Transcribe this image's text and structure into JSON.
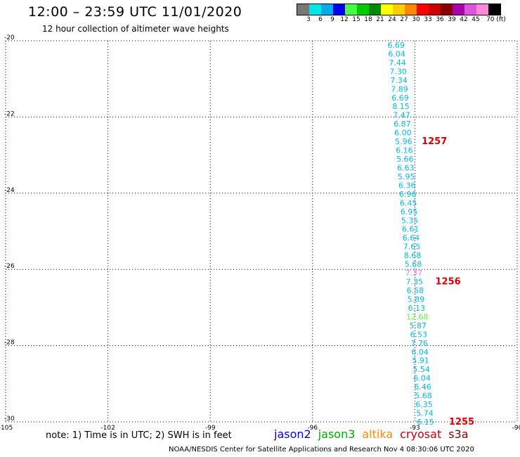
{
  "title": "12:00 – 23:59 UTC 11/01/2020",
  "subtitle": "12 hour collection of altimeter wave heights",
  "colorbar": {
    "colors": [
      "#777777",
      "#00e5e5",
      "#00aaee",
      "#0000ee",
      "#44ff44",
      "#00cc00",
      "#008800",
      "#ffff00",
      "#ffcc00",
      "#ff8800",
      "#ff0000",
      "#cc0000",
      "#880000",
      "#aa00aa",
      "#dd55dd",
      "#ff88dd",
      "#000000"
    ],
    "labels": [
      "3",
      "6",
      "9",
      "12",
      "15",
      "18",
      "21",
      "24",
      "27",
      "30",
      "33",
      "36",
      "39",
      "42",
      "45",
      "70 (ft)"
    ]
  },
  "note": "note:  1) Time is in UTC;  2) SWH is in feet",
  "legend": [
    {
      "name": "jason2",
      "color": "#0000dd"
    },
    {
      "name": "jason3",
      "color": "#00aa00"
    },
    {
      "name": "altika",
      "color": "#ff8800"
    },
    {
      "name": "cryosat",
      "color": "#cc0000"
    },
    {
      "name": "s3a",
      "color": "#880000"
    }
  ],
  "credit": "NOAA/NESDIS Center for Satellite Applications and Research    Nov  4 08:30:06 UTC 2020",
  "chart_data": {
    "type": "scatter",
    "title": "12:00 – 23:59 UTC 11/01/2020",
    "subtitle": "12 hour collection of altimeter wave heights",
    "xlim": [
      -105,
      -90
    ],
    "ylim": [
      -30,
      -20
    ],
    "x_ticks": [
      "-105",
      "-102",
      "-99",
      "-96",
      "-93",
      "-90"
    ],
    "y_ticks": [
      "-20",
      "-22",
      "-24",
      "-26",
      "-28",
      "-30"
    ],
    "grid": true,
    "series": [
      {
        "name": "",
        "color": "#00bbee",
        "points": [
          {
            "x": -93.55,
            "y": -20.11,
            "v": "6.69"
          },
          {
            "x": -93.53,
            "y": -20.34,
            "v": "6.04"
          },
          {
            "x": -93.51,
            "y": -20.57,
            "v": "7.44"
          },
          {
            "x": -93.49,
            "y": -20.8,
            "v": "7.30"
          },
          {
            "x": -93.47,
            "y": -21.03,
            "v": "7.34"
          },
          {
            "x": -93.45,
            "y": -21.26,
            "v": "7.89"
          },
          {
            "x": -93.43,
            "y": -21.49,
            "v": "6.69"
          },
          {
            "x": -93.41,
            "y": -21.72,
            "v": "8.15"
          },
          {
            "x": -93.39,
            "y": -21.95,
            "v": "7.47"
          },
          {
            "x": -93.37,
            "y": -22.18,
            "v": "6.87"
          },
          {
            "x": -93.35,
            "y": -22.41,
            "v": "6.00"
          },
          {
            "x": -93.33,
            "y": -22.64,
            "v": "5.96"
          },
          {
            "x": -93.31,
            "y": -22.87,
            "v": "6.16"
          },
          {
            "x": -93.29,
            "y": -23.1,
            "v": "5.66"
          },
          {
            "x": -93.27,
            "y": -23.33,
            "v": "6.63"
          },
          {
            "x": -93.25,
            "y": -23.56,
            "v": "5.95"
          },
          {
            "x": -93.23,
            "y": -23.79,
            "v": "6.36"
          },
          {
            "x": -93.21,
            "y": -24.02,
            "v": "6.96"
          },
          {
            "x": -93.19,
            "y": -24.25,
            "v": "6.45"
          },
          {
            "x": -93.17,
            "y": -24.48,
            "v": "6.95"
          },
          {
            "x": -93.15,
            "y": -24.71,
            "v": "5.35"
          },
          {
            "x": -93.13,
            "y": -24.94,
            "v": "6.61"
          },
          {
            "x": -93.11,
            "y": -25.17,
            "v": "6.64"
          },
          {
            "x": -93.09,
            "y": -25.4,
            "v": "7.65"
          },
          {
            "x": -93.07,
            "y": -25.63,
            "v": "8.68"
          },
          {
            "x": -93.05,
            "y": -25.86,
            "v": "5.68"
          },
          {
            "x": -93.03,
            "y": -26.09,
            "v": "7.37",
            "color": "#dd88ee"
          },
          {
            "x": -93.01,
            "y": -26.32,
            "v": "7.35"
          },
          {
            "x": -92.99,
            "y": -26.55,
            "v": "6.58"
          },
          {
            "x": -92.97,
            "y": -26.78,
            "v": "5.89"
          },
          {
            "x": -92.95,
            "y": -27.01,
            "v": "6.13"
          },
          {
            "x": -92.93,
            "y": -27.24,
            "v": "12.68",
            "color": "#66ee44"
          },
          {
            "x": -92.91,
            "y": -27.47,
            "v": "5.87"
          },
          {
            "x": -92.89,
            "y": -27.7,
            "v": "6.53"
          },
          {
            "x": -92.87,
            "y": -27.93,
            "v": "7.76"
          },
          {
            "x": -92.85,
            "y": -28.16,
            "v": "6.04"
          },
          {
            "x": -92.83,
            "y": -28.39,
            "v": "5.91"
          },
          {
            "x": -92.81,
            "y": -28.62,
            "v": "5.54"
          },
          {
            "x": -92.79,
            "y": -28.85,
            "v": "6.04"
          },
          {
            "x": -92.77,
            "y": -29.08,
            "v": "6.46"
          },
          {
            "x": -92.75,
            "y": -29.31,
            "v": "5.68"
          },
          {
            "x": -92.73,
            "y": -29.54,
            "v": "6.35"
          },
          {
            "x": -92.71,
            "y": -29.77,
            "v": "5.74"
          },
          {
            "x": -92.69,
            "y": -30.0,
            "v": "6.15"
          }
        ]
      }
    ],
    "annotations": [
      {
        "text": "1257",
        "x": -92.8,
        "y": -22.64,
        "color": "#dd0000"
      },
      {
        "text": "1256",
        "x": -92.4,
        "y": -26.32,
        "color": "#dd0000"
      },
      {
        "text": "1255",
        "x": -92.0,
        "y": -30.0,
        "color": "#dd0000"
      }
    ]
  }
}
